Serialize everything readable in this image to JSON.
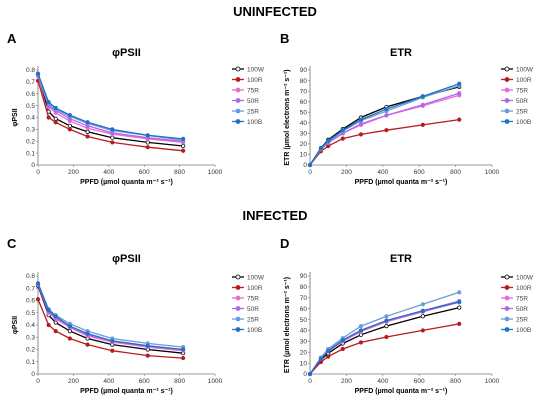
{
  "figure": {
    "section1_title": "UNINFECTED",
    "section2_title": "INFECTED"
  },
  "colors": {
    "100W": "#000000",
    "100R": "#b81c1c",
    "75R": "#e86ae0",
    "50R": "#b565e8",
    "25R": "#6f9ad6",
    "100B": "#1f72c4"
  },
  "chart_data": [
    {
      "panel": "A",
      "title": "φPSII",
      "type": "line",
      "xlabel": "PPFD (µmol quanta m⁻² s⁻¹)",
      "ylabel": "φPSII",
      "xlim": [
        0,
        1000
      ],
      "ylim": [
        0,
        0.8
      ],
      "xticks": [
        0,
        200,
        400,
        600,
        800,
        1000
      ],
      "yticks": [
        0,
        0.1,
        0.2,
        0.3,
        0.4,
        0.5,
        0.6,
        0.7,
        0.8
      ],
      "grid": false,
      "legend": "right",
      "x": [
        0,
        60,
        100,
        180,
        280,
        420,
        620,
        820
      ],
      "series": [
        {
          "name": "100W",
          "values": [
            0.76,
            0.45,
            0.39,
            0.33,
            0.28,
            0.23,
            0.19,
            0.16
          ]
        },
        {
          "name": "100R",
          "values": [
            0.71,
            0.4,
            0.36,
            0.3,
            0.24,
            0.19,
            0.15,
            0.12
          ]
        },
        {
          "name": "75R",
          "values": [
            0.75,
            0.49,
            0.44,
            0.37,
            0.31,
            0.26,
            0.22,
            0.19
          ]
        },
        {
          "name": "50R",
          "values": [
            0.75,
            0.5,
            0.46,
            0.39,
            0.33,
            0.27,
            0.23,
            0.2
          ]
        },
        {
          "name": "25R",
          "values": [
            0.76,
            0.52,
            0.47,
            0.41,
            0.35,
            0.29,
            0.25,
            0.21
          ]
        },
        {
          "name": "100B",
          "values": [
            0.77,
            0.53,
            0.48,
            0.42,
            0.36,
            0.3,
            0.25,
            0.22
          ]
        }
      ]
    },
    {
      "panel": "B",
      "title": "ETR",
      "type": "line",
      "xlabel": "PPFD (µmol quanta m⁻² s⁻¹)",
      "ylabel": "ETR (µmol electrons m⁻² s⁻¹)",
      "xlim": [
        0,
        1000
      ],
      "ylim": [
        0,
        90
      ],
      "xticks": [
        0,
        200,
        400,
        600,
        800,
        1000
      ],
      "yticks": [
        0,
        10,
        20,
        30,
        40,
        50,
        60,
        70,
        80,
        90
      ],
      "grid": false,
      "legend": "right",
      "x": [
        0,
        60,
        100,
        180,
        280,
        420,
        620,
        820
      ],
      "series": [
        {
          "name": "100W",
          "values": [
            0,
            16,
            24,
            34,
            45,
            55,
            65,
            74
          ]
        },
        {
          "name": "100R",
          "values": [
            0,
            13,
            18,
            25,
            29,
            33,
            38,
            43
          ]
        },
        {
          "name": "75R",
          "values": [
            0,
            15,
            21,
            30,
            38,
            47,
            56,
            66
          ]
        },
        {
          "name": "50R",
          "values": [
            0,
            15,
            21,
            30,
            39,
            47,
            57,
            68
          ]
        },
        {
          "name": "25R",
          "values": [
            0,
            15,
            22,
            32,
            42,
            51,
            64,
            75
          ]
        },
        {
          "name": "100B",
          "values": [
            0,
            16,
            23,
            33,
            43,
            53,
            65,
            77
          ]
        }
      ]
    },
    {
      "panel": "C",
      "title": "φPSII",
      "type": "line",
      "xlabel": "PPFD (µmol quanta m⁻² s⁻¹)",
      "ylabel": "φPSII",
      "xlim": [
        0,
        1000
      ],
      "ylim": [
        0,
        0.8
      ],
      "xticks": [
        0,
        200,
        400,
        600,
        800,
        1000
      ],
      "yticks": [
        0,
        0.1,
        0.2,
        0.3,
        0.4,
        0.5,
        0.6,
        0.7,
        0.8
      ],
      "grid": false,
      "legend": "right",
      "x": [
        0,
        60,
        100,
        180,
        280,
        420,
        620,
        820
      ],
      "series": [
        {
          "name": "100W",
          "values": [
            0.72,
            0.48,
            0.42,
            0.35,
            0.29,
            0.24,
            0.2,
            0.17
          ]
        },
        {
          "name": "100R",
          "values": [
            0.61,
            0.4,
            0.35,
            0.29,
            0.24,
            0.19,
            0.15,
            0.13
          ]
        },
        {
          "name": "75R",
          "values": [
            0.73,
            0.5,
            0.45,
            0.38,
            0.31,
            0.26,
            0.22,
            0.19
          ]
        },
        {
          "name": "50R",
          "values": [
            0.73,
            0.51,
            0.46,
            0.39,
            0.32,
            0.27,
            0.23,
            0.2
          ]
        },
        {
          "name": "25R",
          "values": [
            0.74,
            0.53,
            0.48,
            0.41,
            0.35,
            0.29,
            0.25,
            0.22
          ]
        },
        {
          "name": "100B",
          "values": [
            0.74,
            0.52,
            0.47,
            0.39,
            0.33,
            0.27,
            0.23,
            0.2
          ]
        }
      ]
    },
    {
      "panel": "D",
      "title": "ETR",
      "type": "line",
      "xlabel": "PPFD (µmol quanta m⁻² s⁻¹)",
      "ylabel": "ETR (µmol electrons m⁻² s⁻¹)",
      "xlim": [
        0,
        1000
      ],
      "ylim": [
        0,
        90
      ],
      "xticks": [
        0,
        200,
        400,
        600,
        800,
        1000
      ],
      "yticks": [
        0,
        10,
        20,
        30,
        40,
        50,
        60,
        70,
        80,
        90
      ],
      "grid": false,
      "legend": "right",
      "x": [
        0,
        60,
        100,
        180,
        280,
        420,
        620,
        820
      ],
      "series": [
        {
          "name": "100W",
          "values": [
            0,
            13,
            19,
            28,
            36,
            44,
            53,
            61
          ]
        },
        {
          "name": "100R",
          "values": [
            0,
            11,
            16,
            23,
            29,
            34,
            40,
            46
          ]
        },
        {
          "name": "75R",
          "values": [
            0,
            14,
            21,
            30,
            39,
            48,
            57,
            66
          ]
        },
        {
          "name": "50R",
          "values": [
            0,
            15,
            22,
            31,
            40,
            49,
            58,
            67
          ]
        },
        {
          "name": "25R",
          "values": [
            0,
            15,
            23,
            33,
            44,
            53,
            64,
            75
          ]
        },
        {
          "name": "100B",
          "values": [
            0,
            14,
            21,
            31,
            40,
            49,
            58,
            66
          ]
        }
      ]
    }
  ]
}
